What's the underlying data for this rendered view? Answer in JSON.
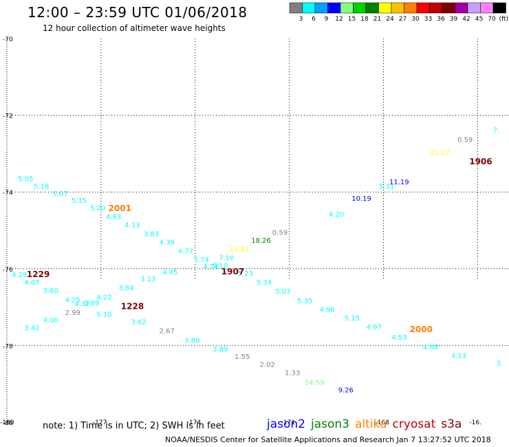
{
  "header": {
    "title": "12:00 – 23:59 UTC 01/06/2018",
    "subtitle": "12 hour collection of altimeter wave heights"
  },
  "legend": {
    "unit": "(ft)",
    "bins": [
      {
        "label": "3",
        "color": "#808080"
      },
      {
        "label": "6",
        "color": "#00ffff"
      },
      {
        "label": "9",
        "color": "#00a0ff"
      },
      {
        "label": "12",
        "color": "#0000ff"
      },
      {
        "label": "15",
        "color": "#80ff80"
      },
      {
        "label": "18",
        "color": "#00d000"
      },
      {
        "label": "21",
        "color": "#008000"
      },
      {
        "label": "24",
        "color": "#ffff00"
      },
      {
        "label": "27",
        "color": "#ffc000"
      },
      {
        "label": "30",
        "color": "#ff8000"
      },
      {
        "label": "33",
        "color": "#ff0000"
      },
      {
        "label": "36",
        "color": "#c00000"
      },
      {
        "label": "39",
        "color": "#800000"
      },
      {
        "label": "42",
        "color": "#a000a0"
      },
      {
        "label": "45",
        "color": "#c8a0ff"
      },
      {
        "label": "70",
        "color": "#ff80ff"
      },
      {
        "label": "",
        "color": "#000000"
      }
    ]
  },
  "map": {
    "lon_range": [
      -180,
      -164
    ],
    "lat_range": [
      -80,
      -70
    ],
    "grid": true,
    "lon_ticks": [
      {
        "value": -180,
        "label": "-180"
      },
      {
        "value": -177,
        "label": "-177"
      },
      {
        "value": -174,
        "label": "-174"
      },
      {
        "value": -171,
        "label": "-171"
      },
      {
        "value": -168,
        "label": "-168"
      },
      {
        "value": -165,
        "label": "-16."
      }
    ],
    "lat_ticks": [
      {
        "value": -70,
        "label": "-70"
      },
      {
        "value": -72,
        "label": "-72"
      },
      {
        "value": -74,
        "label": "-74"
      },
      {
        "value": -76,
        "label": "-76"
      },
      {
        "value": -78,
        "label": "-78"
      },
      {
        "value": -80,
        "label": "-80"
      }
    ]
  },
  "observations": [
    {
      "lon": -179.4,
      "lat": -73.72,
      "text": "5.05",
      "color": "#00ffff"
    },
    {
      "lon": -178.9,
      "lat": -73.92,
      "text": "5.18",
      "color": "#00ffff"
    },
    {
      "lon": -178.3,
      "lat": -74.1,
      "text": "5.07",
      "color": "#00ffff"
    },
    {
      "lon": -177.7,
      "lat": -74.28,
      "text": "5.15",
      "color": "#00ffff"
    },
    {
      "lon": -177.1,
      "lat": -74.48,
      "text": "5.20",
      "color": "#00ffff"
    },
    {
      "lon": -176.6,
      "lat": -74.7,
      "text": "4.63",
      "color": "#00ffff"
    },
    {
      "lon": -176.0,
      "lat": -74.92,
      "text": "4.13",
      "color": "#00ffff"
    },
    {
      "lon": -175.4,
      "lat": -75.15,
      "text": "3.83",
      "color": "#00ffff"
    },
    {
      "lon": -174.9,
      "lat": -75.37,
      "text": "4.39",
      "color": "#00ffff"
    },
    {
      "lon": -174.3,
      "lat": -75.6,
      "text": "4.77",
      "color": "#00ffff"
    },
    {
      "lon": -173.8,
      "lat": -75.82,
      "text": "5.74",
      "color": "#00ffff"
    },
    {
      "lon": -173.5,
      "lat": -76.0,
      "text": "4.74",
      "color": "#00ffff"
    },
    {
      "lon": -173.2,
      "lat": -75.98,
      "text": "5.10",
      "color": "#00ffff"
    },
    {
      "lon": -173.0,
      "lat": -75.78,
      "text": "7.10",
      "color": "#00ffff"
    },
    {
      "lon": -172.6,
      "lat": -75.55,
      "text": "23.43",
      "color": "#ffff00"
    },
    {
      "lon": -171.9,
      "lat": -75.32,
      "text": "18.26",
      "color": "#008000"
    },
    {
      "lon": -171.3,
      "lat": -75.12,
      "text": "0.59",
      "color": "#808080"
    },
    {
      "lon": -169.5,
      "lat": -74.64,
      "text": "4.20",
      "color": "#00ffff"
    },
    {
      "lon": -168.7,
      "lat": -74.23,
      "text": "10.19",
      "color": "#0000ff"
    },
    {
      "lon": -167.9,
      "lat": -73.92,
      "text": "5.31",
      "color": "#00ffff"
    },
    {
      "lon": -167.5,
      "lat": -73.8,
      "text": "11.19",
      "color": "#0000ff"
    },
    {
      "lon": -166.2,
      "lat": -73.03,
      "text": "21.27",
      "color": "#ffff00"
    },
    {
      "lon": -165.4,
      "lat": -72.7,
      "text": "0.59",
      "color": "#808080"
    },
    {
      "lon": -164.4,
      "lat": -72.45,
      "text": "7.",
      "color": "#00ffff"
    },
    {
      "lon": -179.6,
      "lat": -76.22,
      "text": "4.28",
      "color": "#00ffff"
    },
    {
      "lon": -179.2,
      "lat": -76.42,
      "text": "4.07",
      "color": "#00ffff"
    },
    {
      "lon": -178.6,
      "lat": -76.63,
      "text": "3.60",
      "color": "#00ffff"
    },
    {
      "lon": -177.9,
      "lat": -76.87,
      "text": "4.25",
      "color": "#00ffff"
    },
    {
      "lon": -177.6,
      "lat": -76.97,
      "text": "4.37",
      "color": "#00ffff"
    },
    {
      "lon": -177.3,
      "lat": -76.95,
      "text": "3.89",
      "color": "#00ffff"
    },
    {
      "lon": -176.9,
      "lat": -76.8,
      "text": "4.22",
      "color": "#00ffff"
    },
    {
      "lon": -176.2,
      "lat": -76.56,
      "text": "3.84",
      "color": "#00ffff"
    },
    {
      "lon": -175.5,
      "lat": -76.33,
      "text": "3.13",
      "color": "#00ffff"
    },
    {
      "lon": -174.8,
      "lat": -76.15,
      "text": "4.45",
      "color": "#00ffff"
    },
    {
      "lon": -172.4,
      "lat": -76.18,
      "text": "5.23",
      "color": "#00ffff"
    },
    {
      "lon": -171.8,
      "lat": -76.42,
      "text": "5.34",
      "color": "#00ffff"
    },
    {
      "lon": -171.2,
      "lat": -76.65,
      "text": "5.03",
      "color": "#00ffff"
    },
    {
      "lon": -170.5,
      "lat": -76.9,
      "text": "5.35",
      "color": "#00ffff"
    },
    {
      "lon": -169.8,
      "lat": -77.12,
      "text": "4.96",
      "color": "#00ffff"
    },
    {
      "lon": -169.0,
      "lat": -77.35,
      "text": "5.15",
      "color": "#00ffff"
    },
    {
      "lon": -168.3,
      "lat": -77.58,
      "text": "4.97",
      "color": "#00ffff"
    },
    {
      "lon": -167.5,
      "lat": -77.85,
      "text": "4.53",
      "color": "#00ffff"
    },
    {
      "lon": -166.5,
      "lat": -78.1,
      "text": "4.68",
      "color": "#00ffff"
    },
    {
      "lon": -165.6,
      "lat": -78.32,
      "text": "4.13",
      "color": "#00ffff"
    },
    {
      "lon": -164.3,
      "lat": -78.52,
      "text": "3.",
      "color": "#00ffff"
    },
    {
      "lon": -179.2,
      "lat": -77.6,
      "text": "3.42",
      "color": "#00ffff"
    },
    {
      "lon": -178.6,
      "lat": -77.4,
      "text": "4.00",
      "color": "#00ffff"
    },
    {
      "lon": -177.9,
      "lat": -77.2,
      "text": "2.99",
      "color": "#808080"
    },
    {
      "lon": -176.9,
      "lat": -77.25,
      "text": "5.10",
      "color": "#00ffff"
    },
    {
      "lon": -175.8,
      "lat": -77.45,
      "text": "3.62",
      "color": "#00ffff"
    },
    {
      "lon": -174.9,
      "lat": -77.68,
      "text": "2.67",
      "color": "#808080"
    },
    {
      "lon": -174.1,
      "lat": -77.93,
      "text": "3.89",
      "color": "#00ffff"
    },
    {
      "lon": -173.2,
      "lat": -78.15,
      "text": "3.89",
      "color": "#00ffff"
    },
    {
      "lon": -172.5,
      "lat": -78.35,
      "text": "1.55",
      "color": "#808080"
    },
    {
      "lon": -171.7,
      "lat": -78.56,
      "text": "2.02",
      "color": "#808080"
    },
    {
      "lon": -170.9,
      "lat": -78.77,
      "text": "1.33",
      "color": "#808080"
    },
    {
      "lon": -170.2,
      "lat": -79.02,
      "text": "14.59",
      "color": "#80ff80"
    },
    {
      "lon": -169.2,
      "lat": -79.22,
      "text": "9.26",
      "color": "#0000ff"
    }
  ],
  "time_labels": [
    {
      "lon": -176.4,
      "lat": -74.5,
      "text": "2001",
      "color": "#ff8000"
    },
    {
      "lon": -179.0,
      "lat": -76.22,
      "text": "1229",
      "color": "#800000"
    },
    {
      "lon": -172.8,
      "lat": -76.15,
      "text": "1907",
      "color": "#800000"
    },
    {
      "lon": -176.0,
      "lat": -77.05,
      "text": "1228",
      "color": "#800000"
    },
    {
      "lon": -164.9,
      "lat": -73.28,
      "text": "1906",
      "color": "#800000"
    },
    {
      "lon": -166.8,
      "lat": -77.65,
      "text": "2000",
      "color": "#ff8000"
    }
  ],
  "footer": {
    "note": "note: 1) Time is in UTC; 2) SWH is in feet",
    "missions": [
      {
        "label": "jason2",
        "color": "#0000ff"
      },
      {
        "label": "jason3",
        "color": "#008000"
      },
      {
        "label": "altika",
        "color": "#ff8000"
      },
      {
        "label": "cryosat",
        "color": "#c00000"
      },
      {
        "label": "s3a",
        "color": "#800000"
      }
    ],
    "credit": "NOAA/NESDIS Center for Satellite Applications and Research    Jan  7 13:27:52 UTC 2018"
  }
}
